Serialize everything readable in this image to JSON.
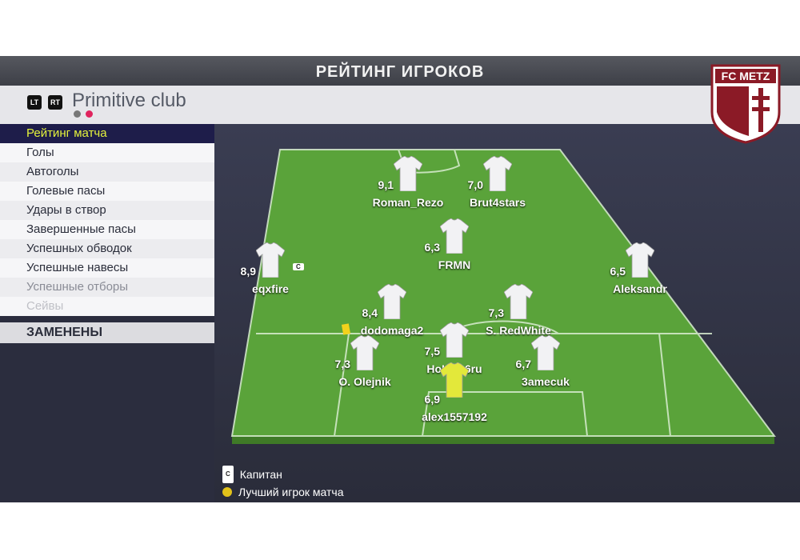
{
  "title": "РЕЙТИНГ ИГРОКОВ",
  "club": {
    "lt": "LT",
    "rt": "RT",
    "name": "Primitive club",
    "page_dots_active": 2,
    "accent": "#e0245e"
  },
  "crest_text": "FC METZ",
  "sidebar": {
    "items": [
      {
        "label": "Рейтинг матча",
        "state": "selected"
      },
      {
        "label": "Голы"
      },
      {
        "label": "Автоголы"
      },
      {
        "label": "Голевые пасы"
      },
      {
        "label": "Удары в створ"
      },
      {
        "label": "Завершенные пасы"
      },
      {
        "label": "Успешных обводок"
      },
      {
        "label": "Успешные навесы"
      },
      {
        "label": "Успешные отборы",
        "state": "dim"
      },
      {
        "label": "Сейвы",
        "state": "dim2"
      }
    ],
    "subs_label": "ЗАМЕНЕНЫ"
  },
  "players": [
    {
      "name": "Roman_Rezo",
      "rating": "9,1"
    },
    {
      "name": "Brut4stars",
      "rating": "7,0"
    },
    {
      "name": "FRMN",
      "rating": "6,3"
    },
    {
      "name": "eqxfire",
      "rating": "8,9",
      "captain": true
    },
    {
      "name": "Aleksandr",
      "rating": "6,5"
    },
    {
      "name": "dodomaga2",
      "rating": "8,4",
      "yellow_card": true
    },
    {
      "name": "S. RedWhite",
      "rating": "7,3"
    },
    {
      "name": "O. Olejnik",
      "rating": "7,3"
    },
    {
      "name": "HoLLa   6ru",
      "rating": "7,5"
    },
    {
      "name": "3amecuk",
      "rating": "6,7"
    },
    {
      "name": "alex1557192",
      "rating": "6,9",
      "goalkeeper": true
    }
  ],
  "legend": {
    "captain": "Капитан",
    "captain_badge": "C",
    "motm": "Лучший игрок матча"
  }
}
